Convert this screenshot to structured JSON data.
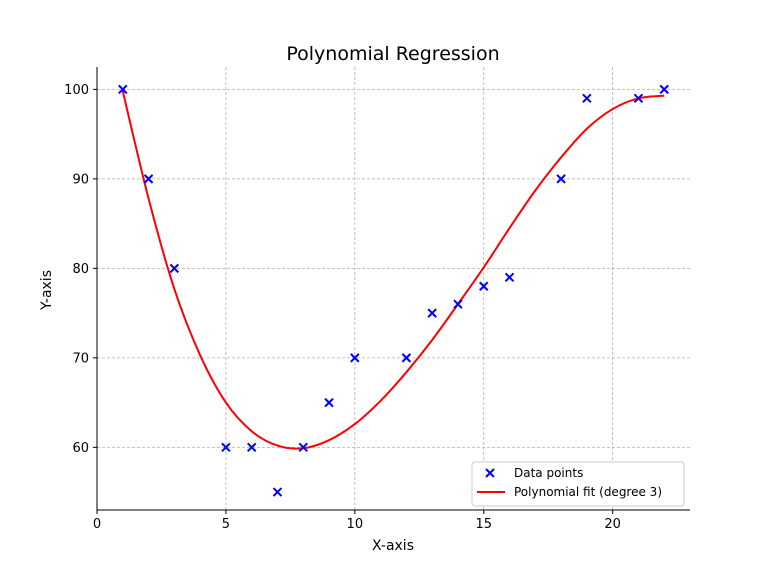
{
  "chart_data": {
    "type": "scatter",
    "title": "Polynomial Regression",
    "xlabel": "X-axis",
    "ylabel": "Y-axis",
    "xlim": [
      0,
      23
    ],
    "ylim": [
      53,
      102.5
    ],
    "xticks": [
      0,
      5,
      10,
      15,
      20
    ],
    "yticks": [
      60,
      70,
      80,
      90,
      100
    ],
    "grid": true,
    "legend_position": "lower-right",
    "series": [
      {
        "name": "Data points",
        "kind": "scatter",
        "marker": "x",
        "color": "#0000ff",
        "x": [
          1,
          2,
          3,
          5,
          6,
          7,
          8,
          9,
          10,
          12,
          13,
          14,
          15,
          16,
          18,
          19,
          21,
          22
        ],
        "y": [
          100,
          90,
          80,
          60,
          60,
          55,
          60,
          65,
          70,
          70,
          75,
          76,
          78,
          79,
          90,
          99,
          99,
          100
        ]
      },
      {
        "name": "Polynomial fit (degree 3)",
        "kind": "line",
        "color": "#ff0000",
        "x": [
          1,
          2,
          3,
          4,
          5,
          6,
          7,
          8,
          9,
          10,
          11,
          12,
          13,
          14,
          15,
          16,
          17,
          18,
          19,
          20,
          21,
          22
        ],
        "y": [
          99.8,
          87.8,
          77.7,
          70.3,
          65.0,
          61.8,
          60.2,
          59.9,
          60.8,
          62.6,
          65.2,
          68.4,
          72.0,
          76.0,
          80.1,
          84.5,
          88.7,
          92.4,
          95.6,
          97.8,
          99.0,
          99.3
        ]
      }
    ]
  }
}
